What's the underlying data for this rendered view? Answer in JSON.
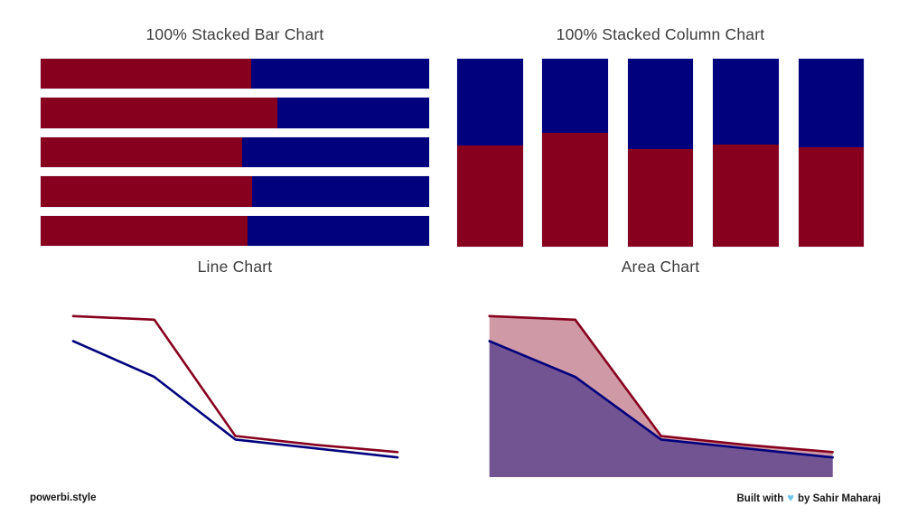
{
  "colors": {
    "red": "#87001E",
    "blue": "#01017E",
    "red_area_fill": "rgba(135,0,30,0.40)",
    "blue_area_fill": "rgba(1,1,126,0.45)",
    "title_text": "#3c3c3c",
    "footer_text": "#161616",
    "heart": "#6fc4ee",
    "background": "#ffffff"
  },
  "chart_data": [
    {
      "id": "stacked-bar",
      "type": "bar",
      "orientation": "horizontal",
      "percent_stacked": true,
      "title": "100% Stacked Bar Chart",
      "legend": "none",
      "axes": "hidden",
      "categories": [
        "bar-1",
        "bar-2",
        "bar-3",
        "bar-4",
        "bar-5"
      ],
      "series": [
        {
          "name": "red-series",
          "color": "#87001E",
          "percents": [
            54.2,
            60.9,
            51.9,
            54.5,
            53.3
          ]
        },
        {
          "name": "blue-series",
          "color": "#01017E",
          "percents": [
            45.8,
            39.1,
            48.1,
            45.5,
            46.7
          ]
        }
      ]
    },
    {
      "id": "stacked-column",
      "type": "bar",
      "orientation": "vertical",
      "percent_stacked": true,
      "title": "100% Stacked Column Chart",
      "legend": "none",
      "axes": "hidden",
      "categories": [
        "col-1",
        "col-2",
        "col-3",
        "col-4",
        "col-5"
      ],
      "series": [
        {
          "name": "red-series",
          "color": "#87001E",
          "percents": [
            54.0,
            60.8,
            51.7,
            54.4,
            53.1
          ]
        },
        {
          "name": "blue-series",
          "color": "#01017E",
          "percents": [
            46.0,
            39.2,
            48.3,
            45.6,
            46.9
          ]
        }
      ]
    },
    {
      "id": "line",
      "type": "line",
      "title": "Line Chart",
      "legend": "none",
      "axes": "hidden",
      "ylim": [
        0,
        100
      ],
      "x": [
        1,
        2,
        3,
        4,
        5
      ],
      "series": [
        {
          "name": "red-series",
          "color": "#87001E",
          "values": [
            90,
            88,
            23,
            18,
            14
          ]
        },
        {
          "name": "blue-series",
          "color": "#01017E",
          "values": [
            76,
            56,
            21,
            16,
            11
          ]
        }
      ]
    },
    {
      "id": "area",
      "type": "area",
      "title": "Area Chart",
      "legend": "none",
      "axes": "hidden",
      "ylim": [
        0,
        100
      ],
      "x": [
        1,
        2,
        3,
        4,
        5
      ],
      "series": [
        {
          "name": "red-series",
          "color": "#87001E",
          "fill": "rgba(135,0,30,0.40)",
          "values": [
            90,
            88,
            23,
            18,
            14
          ]
        },
        {
          "name": "blue-series",
          "color": "#01017E",
          "fill": "rgba(1,1,126,0.45)",
          "values": [
            76,
            56,
            21,
            16,
            11
          ]
        }
      ]
    }
  ],
  "footer": {
    "left": "powerbi.style",
    "right_prefix": "Built with",
    "right_suffix": "by Sahir Maharaj",
    "heart_icon": "♥"
  }
}
